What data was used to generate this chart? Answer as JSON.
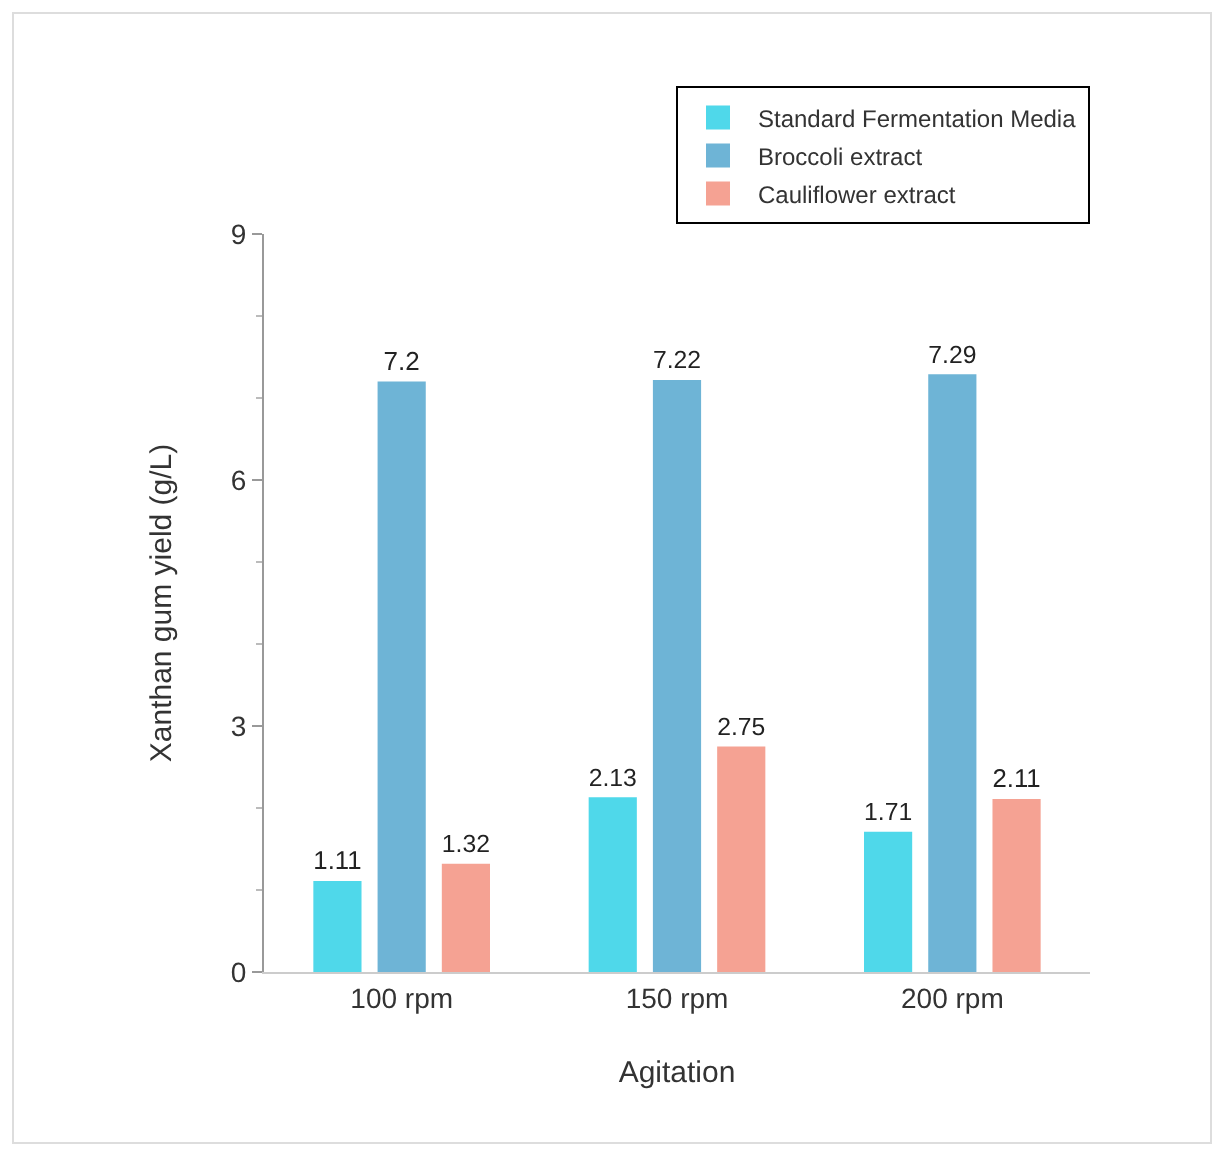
{
  "chart_data": {
    "type": "bar",
    "xlabel": "Agitation",
    "ylabel": "Xanthan gum yield (g/L)",
    "categories": [
      "100 rpm",
      "150 rpm",
      "200 rpm"
    ],
    "series": [
      {
        "name": "Standard Fermentation Media",
        "color": "#4fd8ea",
        "values": [
          1.11,
          2.13,
          1.71
        ]
      },
      {
        "name": "Broccoli extract",
        "color": "#6eb4d6",
        "values": [
          7.2,
          7.22,
          7.29
        ]
      },
      {
        "name": "Cauliflower extract",
        "color": "#f5a293",
        "values": [
          1.32,
          2.75,
          2.11
        ]
      }
    ],
    "ylim": [
      0,
      9
    ],
    "yticks": [
      0,
      3,
      6,
      9
    ],
    "grid": false,
    "legend": "top right",
    "data_labels": true
  }
}
